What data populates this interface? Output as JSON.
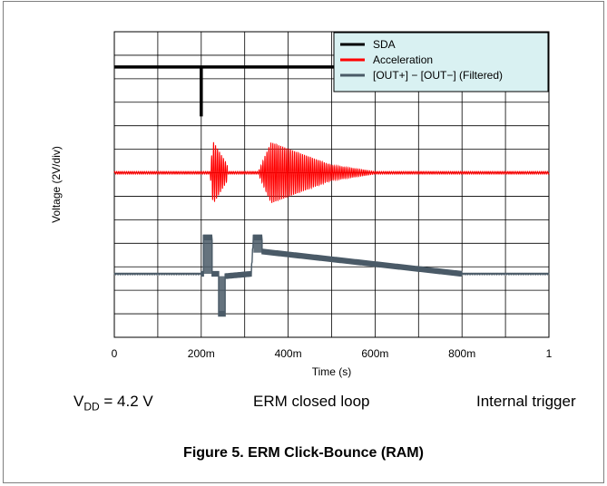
{
  "chart_data": {
    "type": "line",
    "title": "",
    "xlabel": "Time (s)",
    "ylabel": "Voltage (2V/div)",
    "xlim": [
      0,
      1
    ],
    "x_ticks": [
      {
        "value": 0,
        "label": "0"
      },
      {
        "value": 0.2,
        "label": "200m"
      },
      {
        "value": 0.4,
        "label": "400m"
      },
      {
        "value": 0.6,
        "label": "600m"
      },
      {
        "value": 0.8,
        "label": "800m"
      },
      {
        "value": 1,
        "label": "1"
      }
    ],
    "grid": true,
    "grid_divisions": {
      "x": 10,
      "y": 13
    },
    "legend_position": "top-right",
    "series": [
      {
        "name": "SDA",
        "color": "#000000",
        "points": [
          [
            0,
            11.5
          ],
          [
            0.2,
            11.5
          ],
          [
            0.2,
            9.4
          ],
          [
            0.2,
            11.5
          ],
          [
            1,
            11.5
          ]
        ]
      },
      {
        "name": "Acceleration",
        "color": "#ff0000",
        "baseline_div": 7.0,
        "bursts": [
          {
            "start": 0.22,
            "end": 0.26,
            "peak": 0.18,
            "amplitude_div": 1.35
          },
          {
            "start": 0.33,
            "end": 0.5,
            "peak": 0.18,
            "amplitude_div": 1.3,
            "tail_end": 0.62
          }
        ]
      },
      {
        "name": "[OUT+] − [OUT−] (Filtered)",
        "color": "#4a5a67",
        "points": [
          [
            0,
            2.7
          ],
          [
            0.205,
            2.7
          ],
          [
            0.205,
            4.25
          ],
          [
            0.225,
            4.25
          ],
          [
            0.225,
            2.7
          ],
          [
            0.24,
            2.7
          ],
          [
            0.24,
            1.0
          ],
          [
            0.255,
            1.0
          ],
          [
            0.255,
            2.6
          ],
          [
            0.315,
            2.7
          ],
          [
            0.32,
            4.25
          ],
          [
            0.34,
            4.25
          ],
          [
            0.34,
            3.65
          ],
          [
            0.8,
            2.7
          ],
          [
            1,
            2.7
          ]
        ]
      }
    ]
  },
  "footer": {
    "vdd_main": "V",
    "vdd_sub": "DD",
    "vdd_value": " = 4.2 V",
    "mode": "ERM closed loop",
    "trigger": "Internal trigger"
  },
  "caption": "Figure 5. ERM Click-Bounce (RAM)"
}
